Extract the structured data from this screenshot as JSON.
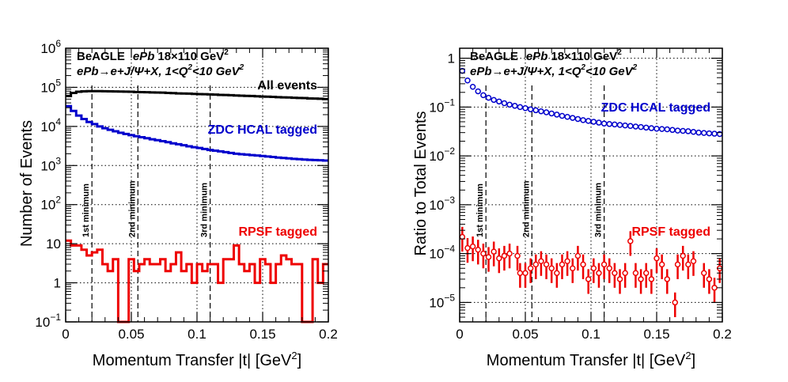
{
  "chart_data": [
    {
      "type": "line",
      "title": "",
      "xlabel": "Momentum Transfer |t| [GeV",
      "xlabel_sup": "2",
      "xlabel_end": "]",
      "ylabel": "Number of Events",
      "x_range": [
        0,
        0.2
      ],
      "y_range": [
        0.1,
        1000000
      ],
      "y_scale": "log",
      "grid": true,
      "x_ticks": [
        "0",
        "0.05",
        "0.1",
        "0.15",
        "0.2"
      ],
      "y_tick_labels": [
        {
          "v": 0.1,
          "base": "10",
          "sup": "−1"
        },
        {
          "v": 1,
          "base": "1",
          "sup": ""
        },
        {
          "v": 10,
          "base": "10",
          "sup": ""
        },
        {
          "v": 100,
          "base": "10",
          "sup": "2"
        },
        {
          "v": 1000,
          "base": "10",
          "sup": "3"
        },
        {
          "v": 10000,
          "base": "10",
          "sup": "4"
        },
        {
          "v": 100000,
          "base": "10",
          "sup": "5"
        },
        {
          "v": 1000000,
          "base": "10",
          "sup": "6"
        }
      ],
      "annotation_line1_a": "BeAGLE",
      "annotation_line1_b": "ePb",
      "annotation_line1_c": "18×110 GeV",
      "annotation_line1_sup": "2",
      "annotation_line2": "ePb→e+J/Ψ+X, 1<Q",
      "annotation_line2_sup": "2",
      "annotation_line2_end": "<10 GeV",
      "annotation_line2_sup2": "2",
      "minima": [
        {
          "x": 0.02,
          "label": "1st minimum"
        },
        {
          "x": 0.055,
          "label": "2nd minimum"
        },
        {
          "x": 0.11,
          "label": "3rd minimum"
        }
      ],
      "series": [
        {
          "name": "All events",
          "color": "#000000",
          "bin_width": 0.004,
          "x": [
            0.002,
            0.006,
            0.01,
            0.014,
            0.018,
            0.022,
            0.026,
            0.03,
            0.034,
            0.038,
            0.042,
            0.046,
            0.05,
            0.054,
            0.058,
            0.062,
            0.066,
            0.07,
            0.074,
            0.078,
            0.082,
            0.086,
            0.09,
            0.094,
            0.098,
            0.102,
            0.106,
            0.11,
            0.114,
            0.118,
            0.122,
            0.126,
            0.13,
            0.134,
            0.138,
            0.142,
            0.146,
            0.15,
            0.154,
            0.158,
            0.162,
            0.166,
            0.17,
            0.174,
            0.178,
            0.182,
            0.186,
            0.19,
            0.194,
            0.198
          ],
          "values": [
            60000,
            72000,
            77000,
            79000,
            80000,
            80000,
            80000,
            79500,
            79000,
            78500,
            78000,
            77500,
            77000,
            76000,
            75500,
            75000,
            74000,
            73500,
            73000,
            72000,
            71000,
            70000,
            69500,
            69000,
            68000,
            67000,
            66500,
            66000,
            65000,
            64000,
            63500,
            63000,
            62000,
            61000,
            60500,
            60000,
            59000,
            58000,
            57500,
            57000,
            56000,
            55500,
            55000,
            54000,
            53500,
            53000,
            52000,
            51500,
            51000,
            50000
          ]
        },
        {
          "name": "ZDC HCAL tagged",
          "color": "#0000cc",
          "bin_width": 0.004,
          "x": [
            0.002,
            0.006,
            0.01,
            0.014,
            0.018,
            0.022,
            0.026,
            0.03,
            0.034,
            0.038,
            0.042,
            0.046,
            0.05,
            0.054,
            0.058,
            0.062,
            0.066,
            0.07,
            0.074,
            0.078,
            0.082,
            0.086,
            0.09,
            0.094,
            0.098,
            0.102,
            0.106,
            0.11,
            0.114,
            0.118,
            0.122,
            0.126,
            0.13,
            0.134,
            0.138,
            0.142,
            0.146,
            0.15,
            0.154,
            0.158,
            0.162,
            0.166,
            0.17,
            0.174,
            0.178,
            0.182,
            0.186,
            0.19,
            0.194,
            0.198
          ],
          "values": [
            33000,
            25000,
            19000,
            15500,
            13000,
            11500,
            10000,
            9000,
            8200,
            7500,
            6900,
            6400,
            6000,
            5600,
            5300,
            5000,
            4700,
            4450,
            4200,
            3950,
            3700,
            3500,
            3300,
            3100,
            2950,
            2800,
            2650,
            2500,
            2400,
            2300,
            2200,
            2100,
            2000,
            1950,
            1900,
            1850,
            1800,
            1750,
            1700,
            1650,
            1600,
            1560,
            1520,
            1480,
            1450,
            1420,
            1400,
            1380,
            1360,
            1340
          ]
        },
        {
          "name": "RPSF tagged",
          "color": "#ee0000",
          "bin_width": 0.004,
          "x": [
            0.002,
            0.006,
            0.01,
            0.014,
            0.018,
            0.022,
            0.026,
            0.03,
            0.034,
            0.038,
            0.042,
            0.046,
            0.05,
            0.054,
            0.058,
            0.062,
            0.066,
            0.07,
            0.074,
            0.078,
            0.082,
            0.086,
            0.09,
            0.094,
            0.098,
            0.102,
            0.106,
            0.11,
            0.114,
            0.118,
            0.122,
            0.126,
            0.13,
            0.134,
            0.138,
            0.142,
            0.146,
            0.15,
            0.154,
            0.158,
            0.162,
            0.166,
            0.17,
            0.174,
            0.178,
            0.182,
            0.186,
            0.19,
            0.194,
            0.198
          ],
          "values": [
            12,
            9,
            9,
            7,
            5,
            6,
            7,
            3,
            2,
            4,
            0.1,
            0.1,
            4,
            2,
            3,
            4,
            3,
            3,
            4,
            2,
            3,
            6,
            2,
            3,
            1,
            3,
            2,
            3,
            3,
            1,
            4,
            4,
            9,
            3,
            2,
            3,
            1,
            4,
            3,
            1,
            3,
            5,
            4,
            3,
            3,
            0.1,
            0.1,
            4,
            1,
            3
          ]
        }
      ],
      "labels": [
        {
          "text": "All events",
          "color": "#000000"
        },
        {
          "text": "ZDC HCAL tagged",
          "color": "#0000cc"
        },
        {
          "text": "RPSF tagged",
          "color": "#ee0000"
        }
      ]
    },
    {
      "type": "scatter",
      "title": "",
      "xlabel": "Momentum Transfer |t| [GeV",
      "xlabel_sup": "2",
      "xlabel_end": "]",
      "ylabel": "Ratio to Total Events",
      "x_range": [
        0,
        0.2
      ],
      "y_range": [
        4e-06,
        1.6
      ],
      "y_scale": "log",
      "grid": true,
      "x_ticks": [
        "0",
        "0.05",
        "0.1",
        "0.15",
        "0.2"
      ],
      "y_tick_labels": [
        {
          "v": 1e-05,
          "base": "10",
          "sup": "−5"
        },
        {
          "v": 0.0001,
          "base": "10",
          "sup": "−4"
        },
        {
          "v": 0.001,
          "base": "10",
          "sup": "−3"
        },
        {
          "v": 0.01,
          "base": "10",
          "sup": "−2"
        },
        {
          "v": 0.1,
          "base": "10",
          "sup": "−1"
        },
        {
          "v": 1,
          "base": "1",
          "sup": ""
        }
      ],
      "annotation_line1_a": "BeAGLE",
      "annotation_line1_b": "ePb",
      "annotation_line1_c": "18×110 GeV",
      "annotation_line1_sup": "2",
      "annotation_line2": "ePb→e+J/Ψ+X, 1<Q",
      "annotation_line2_sup": "2",
      "annotation_line2_end": "<10 GeV",
      "annotation_line2_sup2": "2",
      "minima": [
        {
          "x": 0.02,
          "label": "1st minimum"
        },
        {
          "x": 0.055,
          "label": "2nd minimum"
        },
        {
          "x": 0.11,
          "label": "3rd minimum"
        }
      ],
      "series": [
        {
          "name": "ZDC HCAL tagged",
          "color": "#0000cc",
          "x": [
            0.002,
            0.006,
            0.01,
            0.014,
            0.018,
            0.022,
            0.026,
            0.03,
            0.034,
            0.038,
            0.042,
            0.046,
            0.05,
            0.054,
            0.058,
            0.062,
            0.066,
            0.07,
            0.074,
            0.078,
            0.082,
            0.086,
            0.09,
            0.094,
            0.098,
            0.102,
            0.106,
            0.11,
            0.114,
            0.118,
            0.122,
            0.126,
            0.13,
            0.134,
            0.138,
            0.142,
            0.146,
            0.15,
            0.154,
            0.158,
            0.162,
            0.166,
            0.17,
            0.174,
            0.178,
            0.182,
            0.186,
            0.19,
            0.194,
            0.198
          ],
          "y": [
            0.55,
            0.35,
            0.26,
            0.21,
            0.175,
            0.155,
            0.14,
            0.13,
            0.12,
            0.112,
            0.106,
            0.1,
            0.095,
            0.09,
            0.086,
            0.082,
            0.078,
            0.074,
            0.07,
            0.066,
            0.063,
            0.06,
            0.057,
            0.054,
            0.052,
            0.05,
            0.048,
            0.046,
            0.045,
            0.044,
            0.043,
            0.042,
            0.041,
            0.04,
            0.039,
            0.038,
            0.037,
            0.036,
            0.0355,
            0.035,
            0.034,
            0.033,
            0.0325,
            0.032,
            0.031,
            0.03,
            0.0295,
            0.029,
            0.0285,
            0.028
          ]
        },
        {
          "name": "RPSF tagged",
          "color": "#ee0000",
          "x": [
            0.002,
            0.006,
            0.01,
            0.014,
            0.018,
            0.022,
            0.026,
            0.03,
            0.034,
            0.038,
            0.044,
            0.046,
            0.05,
            0.054,
            0.058,
            0.062,
            0.066,
            0.07,
            0.074,
            0.078,
            0.082,
            0.086,
            0.09,
            0.094,
            0.098,
            0.102,
            0.106,
            0.11,
            0.114,
            0.118,
            0.122,
            0.126,
            0.13,
            0.134,
            0.138,
            0.142,
            0.146,
            0.15,
            0.154,
            0.158,
            0.164,
            0.166,
            0.17,
            0.174,
            0.178,
            0.186,
            0.19,
            0.194,
            0.198
          ],
          "y": [
            0.00022,
            0.00013,
            0.00014,
            0.00012,
            0.0001,
            8.5e-05,
            0.00011,
            8e-05,
            9e-05,
            0.0001,
            9e-05,
            4e-05,
            4e-05,
            5e-05,
            6e-05,
            7e-05,
            6e-05,
            5e-05,
            4e-05,
            6e-05,
            7e-05,
            5e-05,
            9e-05,
            6e-05,
            3e-05,
            5e-05,
            4e-05,
            6e-05,
            5e-05,
            4e-05,
            3e-05,
            4e-05,
            0.00018,
            4e-05,
            3e-05,
            4e-05,
            3e-05,
            8e-05,
            6e-05,
            3e-05,
            1e-05,
            6e-05,
            9e-05,
            6e-05,
            7e-05,
            4e-05,
            3e-05,
            2e-05,
            5e-05
          ]
        }
      ],
      "labels": [
        {
          "text": "ZDC HCAL tagged",
          "color": "#0000cc"
        },
        {
          "text": "RPSF tagged",
          "color": "#ee0000"
        }
      ]
    }
  ]
}
